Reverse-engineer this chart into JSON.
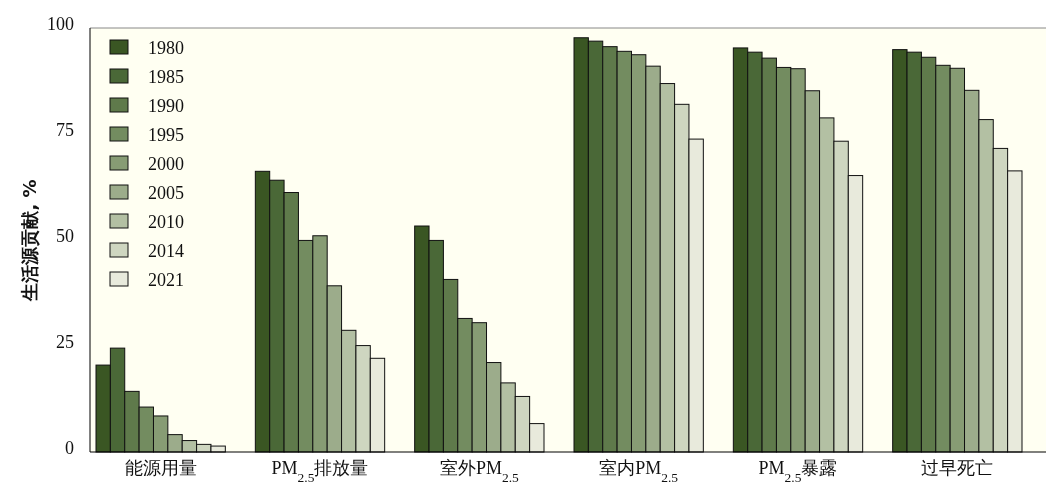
{
  "chart_data": {
    "type": "bar",
    "ylabel": "生活源贡献, %",
    "categories": [
      "能源用量",
      "PM$_{2.5}$排放量",
      "室外PM$_{2.5}$",
      "室内PM$_{2.5}$",
      "PM$_{2.5}$暴露",
      "过早死亡"
    ],
    "series": [
      {
        "name": "1980",
        "color": "#3a5623",
        "values": [
          20.5,
          66.2,
          53.3,
          97.7,
          95.3,
          94.9
        ]
      },
      {
        "name": "1985",
        "color": "#4a6837",
        "values": [
          24.5,
          64.1,
          49.9,
          96.9,
          94.3,
          94.3
        ]
      },
      {
        "name": "1990",
        "color": "#5f7a4b",
        "values": [
          14.3,
          61.2,
          40.7,
          95.6,
          92.9,
          93.1
        ]
      },
      {
        "name": "1995",
        "color": "#738c60",
        "values": [
          10.6,
          49.9,
          31.5,
          94.5,
          90.7,
          91.2
        ]
      },
      {
        "name": "2000",
        "color": "#879c74",
        "values": [
          8.5,
          51.0,
          30.5,
          93.7,
          90.4,
          90.5
        ]
      },
      {
        "name": "2005",
        "color": "#9cac8b",
        "values": [
          4.1,
          39.2,
          21.1,
          91.0,
          85.2,
          85.3
        ]
      },
      {
        "name": "2010",
        "color": "#b3c0a3",
        "values": [
          2.7,
          28.7,
          16.3,
          86.9,
          78.8,
          78.4
        ]
      },
      {
        "name": "2014",
        "color": "#ced6c0",
        "values": [
          1.8,
          25.1,
          13.1,
          82.0,
          73.3,
          71.6
        ]
      },
      {
        "name": "2021",
        "color": "#e8eadc",
        "values": [
          1.4,
          22.1,
          6.7,
          73.8,
          65.2,
          66.3
        ]
      }
    ],
    "ylim": [
      0,
      100
    ],
    "yticks": [
      0,
      25,
      50,
      75,
      100
    ],
    "grid": false,
    "legend": "top left"
  }
}
